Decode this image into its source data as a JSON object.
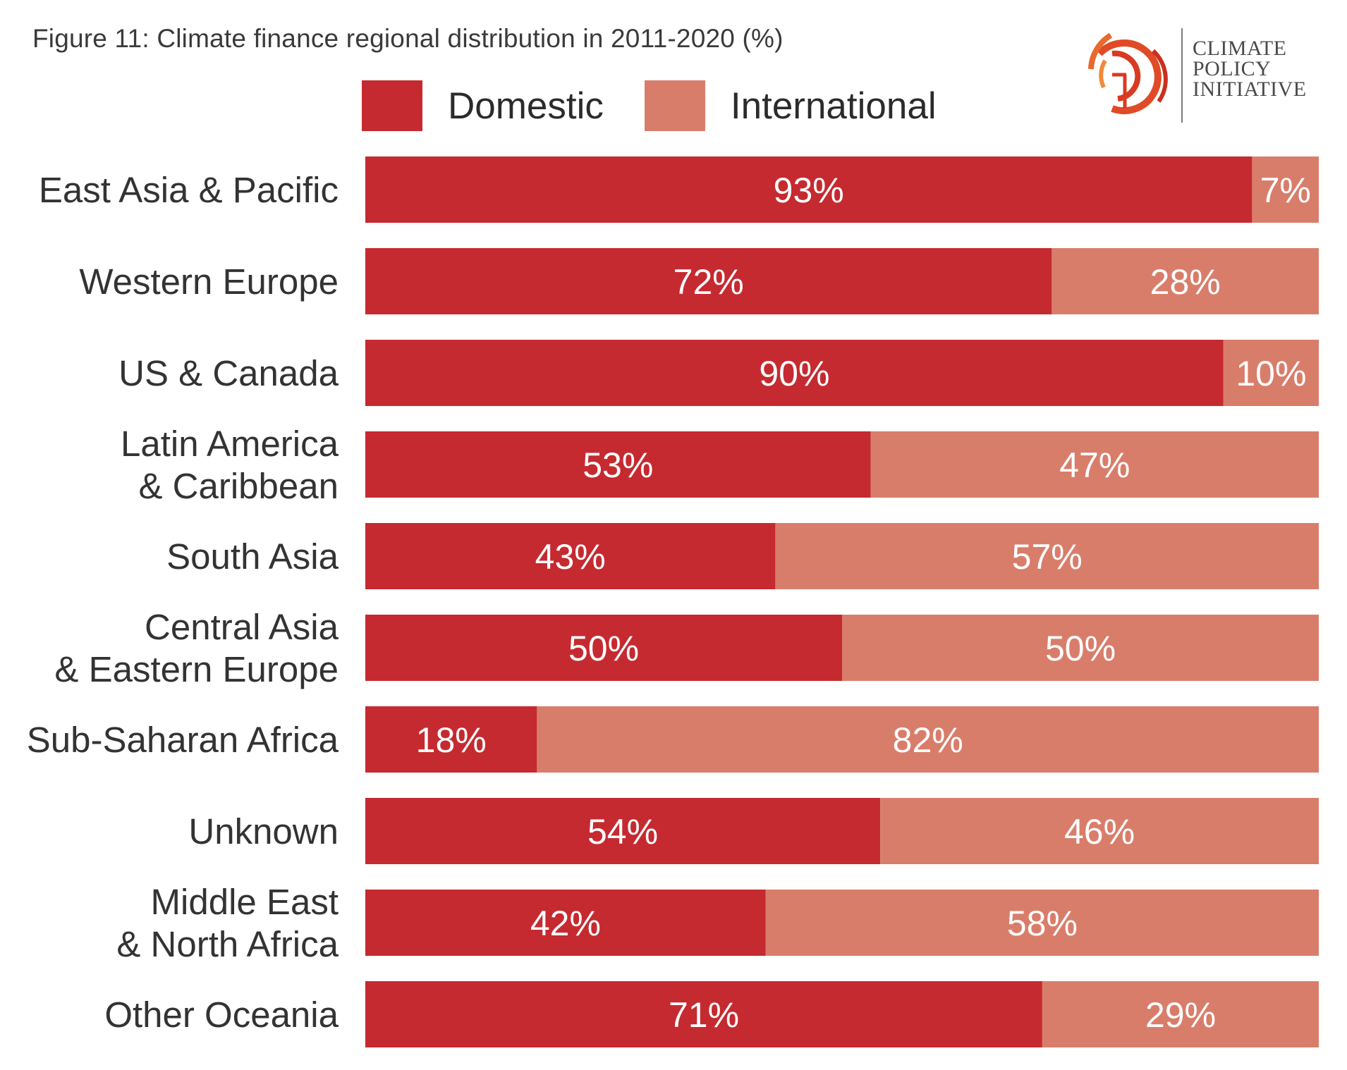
{
  "figure_title": "Figure 11: Climate finance regional distribution in 2011-2020 (%)",
  "logo": {
    "lines": [
      "CLIMATE",
      "POLICY",
      "INITIATIVE"
    ],
    "icon": "cpi-ring-logo-icon"
  },
  "colors": {
    "domestic": "#c52a30",
    "international": "#d97d6b",
    "bar_text": "#ffffff",
    "label_text": "#333333"
  },
  "chart_data": {
    "type": "bar",
    "orientation": "horizontal",
    "stacked": true,
    "title": "Figure 11: Climate finance regional distribution in 2011-2020 (%)",
    "legend_position": "top",
    "categories": [
      [
        "East Asia & Pacific"
      ],
      [
        "Western Europe"
      ],
      [
        "US & Canada"
      ],
      [
        "Latin America",
        "& Caribbean"
      ],
      [
        "South Asia"
      ],
      [
        "Central Asia",
        "& Eastern Europe"
      ],
      [
        "Sub-Saharan Africa"
      ],
      [
        "Unknown"
      ],
      [
        "Middle East",
        "& North Africa"
      ],
      [
        "Other Oceania"
      ]
    ],
    "series": [
      {
        "name": "Domestic",
        "values": [
          93,
          72,
          90,
          53,
          43,
          50,
          18,
          54,
          42,
          71
        ],
        "labels": [
          "93%",
          "72%",
          "90%",
          "53%",
          "43%",
          "50%",
          "18%",
          "54%",
          "42%",
          "71%"
        ]
      },
      {
        "name": "International",
        "values": [
          7,
          28,
          10,
          47,
          57,
          50,
          82,
          46,
          58,
          29
        ],
        "labels": [
          "7%",
          "28%",
          "10%",
          "47%",
          "57%",
          "50%",
          "82%",
          "46%",
          "58%",
          "29%"
        ]
      }
    ],
    "xlim": [
      0,
      100
    ],
    "grid": false
  }
}
